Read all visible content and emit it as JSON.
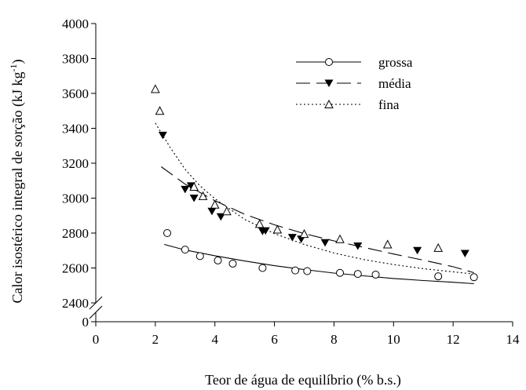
{
  "chart_data": {
    "type": "scatter",
    "xlabel": "Teor de água de equilíbrio (% b.s.)",
    "ylabel": "Calor isostérico integral de sorção (kJ kg",
    "ylabel_sup": "-1",
    "ylabel_close": ")",
    "xlim": [
      0,
      14
    ],
    "ylim": [
      2400,
      4000
    ],
    "y_axis_break": true,
    "y_break_label": "0",
    "xticks": [
      0,
      2,
      4,
      6,
      8,
      10,
      12,
      14
    ],
    "yticks": [
      2400,
      2600,
      2800,
      3000,
      3200,
      3400,
      3600,
      3800,
      4000
    ],
    "grid": false,
    "legend_position": "top-right",
    "series": [
      {
        "name": "grossa",
        "marker": "open-circle",
        "line_style": "solid",
        "points": [
          {
            "x": 2.4,
            "y": 2800
          },
          {
            "x": 3.0,
            "y": 2705
          },
          {
            "x": 3.5,
            "y": 2668
          },
          {
            "x": 4.1,
            "y": 2643
          },
          {
            "x": 4.6,
            "y": 2625
          },
          {
            "x": 5.6,
            "y": 2600
          },
          {
            "x": 6.7,
            "y": 2586
          },
          {
            "x": 7.1,
            "y": 2582
          },
          {
            "x": 8.2,
            "y": 2572
          },
          {
            "x": 8.8,
            "y": 2566
          },
          {
            "x": 9.4,
            "y": 2562
          },
          {
            "x": 11.5,
            "y": 2552
          },
          {
            "x": 12.7,
            "y": 2547
          }
        ],
        "fit": [
          {
            "x": 2.3,
            "y": 2735
          },
          {
            "x": 3.0,
            "y": 2703
          },
          {
            "x": 4.0,
            "y": 2670
          },
          {
            "x": 5.0,
            "y": 2640
          },
          {
            "x": 6.0,
            "y": 2613
          },
          {
            "x": 7.0,
            "y": 2591
          },
          {
            "x": 8.0,
            "y": 2571
          },
          {
            "x": 9.0,
            "y": 2555
          },
          {
            "x": 10.0,
            "y": 2540
          },
          {
            "x": 11.0,
            "y": 2528
          },
          {
            "x": 12.0,
            "y": 2518
          },
          {
            "x": 12.7,
            "y": 2510
          }
        ]
      },
      {
        "name": "média",
        "marker": "filled-triangle-down",
        "line_style": "dash",
        "points": [
          {
            "x": 2.25,
            "y": 3360
          },
          {
            "x": 3.0,
            "y": 3050
          },
          {
            "x": 3.2,
            "y": 3070
          },
          {
            "x": 3.3,
            "y": 3000
          },
          {
            "x": 3.9,
            "y": 2925
          },
          {
            "x": 4.2,
            "y": 2893
          },
          {
            "x": 5.6,
            "y": 2810
          },
          {
            "x": 5.7,
            "y": 2813
          },
          {
            "x": 6.6,
            "y": 2775
          },
          {
            "x": 6.9,
            "y": 2765
          },
          {
            "x": 7.7,
            "y": 2745
          },
          {
            "x": 8.8,
            "y": 2726
          },
          {
            "x": 10.8,
            "y": 2700
          },
          {
            "x": 12.4,
            "y": 2683
          }
        ],
        "fit": [
          {
            "x": 2.2,
            "y": 3180
          },
          {
            "x": 3.0,
            "y": 3080
          },
          {
            "x": 4.0,
            "y": 2985
          },
          {
            "x": 5.0,
            "y": 2908
          },
          {
            "x": 6.0,
            "y": 2847
          },
          {
            "x": 7.0,
            "y": 2797
          },
          {
            "x": 8.0,
            "y": 2755
          },
          {
            "x": 9.0,
            "y": 2718
          },
          {
            "x": 10.0,
            "y": 2680
          },
          {
            "x": 11.0,
            "y": 2645
          },
          {
            "x": 12.0,
            "y": 2607
          },
          {
            "x": 12.7,
            "y": 2573
          }
        ]
      },
      {
        "name": "fina",
        "marker": "open-triangle-up",
        "line_style": "dot",
        "points": [
          {
            "x": 2.0,
            "y": 3625
          },
          {
            "x": 2.15,
            "y": 3500
          },
          {
            "x": 3.3,
            "y": 3065
          },
          {
            "x": 3.6,
            "y": 3012
          },
          {
            "x": 4.0,
            "y": 2963
          },
          {
            "x": 4.4,
            "y": 2925
          },
          {
            "x": 5.5,
            "y": 2852
          },
          {
            "x": 6.1,
            "y": 2820
          },
          {
            "x": 7.0,
            "y": 2795
          },
          {
            "x": 8.2,
            "y": 2765
          },
          {
            "x": 9.8,
            "y": 2735
          },
          {
            "x": 11.5,
            "y": 2715
          }
        ]
      }
    ],
    "fit_fina": [
      {
        "x": 2.0,
        "y": 3430
      },
      {
        "x": 2.5,
        "y": 3290
      },
      {
        "x": 3.0,
        "y": 3165
      },
      {
        "x": 3.5,
        "y": 3070
      },
      {
        "x": 4.0,
        "y": 2997
      },
      {
        "x": 5.0,
        "y": 2878
      },
      {
        "x": 6.0,
        "y": 2797
      },
      {
        "x": 7.0,
        "y": 2735
      },
      {
        "x": 8.0,
        "y": 2686
      },
      {
        "x": 9.0,
        "y": 2648
      },
      {
        "x": 10.0,
        "y": 2620
      },
      {
        "x": 11.0,
        "y": 2596
      },
      {
        "x": 12.0,
        "y": 2578
      },
      {
        "x": 12.7,
        "y": 2565
      }
    ]
  }
}
